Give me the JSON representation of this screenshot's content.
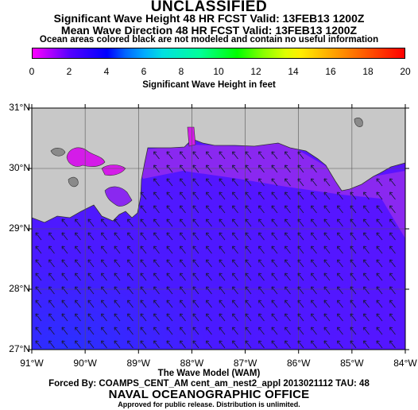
{
  "header": {
    "classification": "UNCLASSIFIED",
    "line1": "Significant Wave Height 48 HR FCST Valid: 13FEB13 1200Z",
    "line2": "Mean Wave Direction 48 HR FCST Valid: 13FEB13 1200Z",
    "note": "Ocean areas colored black are not modeled and contain no useful information"
  },
  "colorbar": {
    "ticks": [
      "0",
      "2",
      "4",
      "6",
      "8",
      "10",
      "12",
      "14",
      "16",
      "18",
      "20"
    ],
    "label": "Significant Wave Height in feet",
    "range": [
      0,
      20
    ]
  },
  "map": {
    "lat_labels": [
      "31°N",
      "30°N",
      "29°N",
      "28°N",
      "27°N"
    ],
    "lon_labels": [
      "91°W",
      "90°W",
      "89°W",
      "88°W",
      "87°W",
      "86°W",
      "85°W",
      "84°W"
    ],
    "lat_range": [
      27,
      31
    ],
    "lon_range": [
      -91,
      -84
    ],
    "colors": {
      "land": "#c8c8c8",
      "sea": "#4a1aff",
      "shallow": "#8a28f0",
      "nearshore": "#d41ce8",
      "arrow": "#1a1a3a"
    }
  },
  "footer": {
    "model": "The Wave Model (WAM)",
    "forced": "Forced By: COAMPS_CENT_AM cent_am_nest2_appl 2013021112 TAU: 48",
    "office": "NAVAL OCEANOGRAPHIC OFFICE",
    "approved": "Approved for public release. Distribution is unlimited."
  }
}
